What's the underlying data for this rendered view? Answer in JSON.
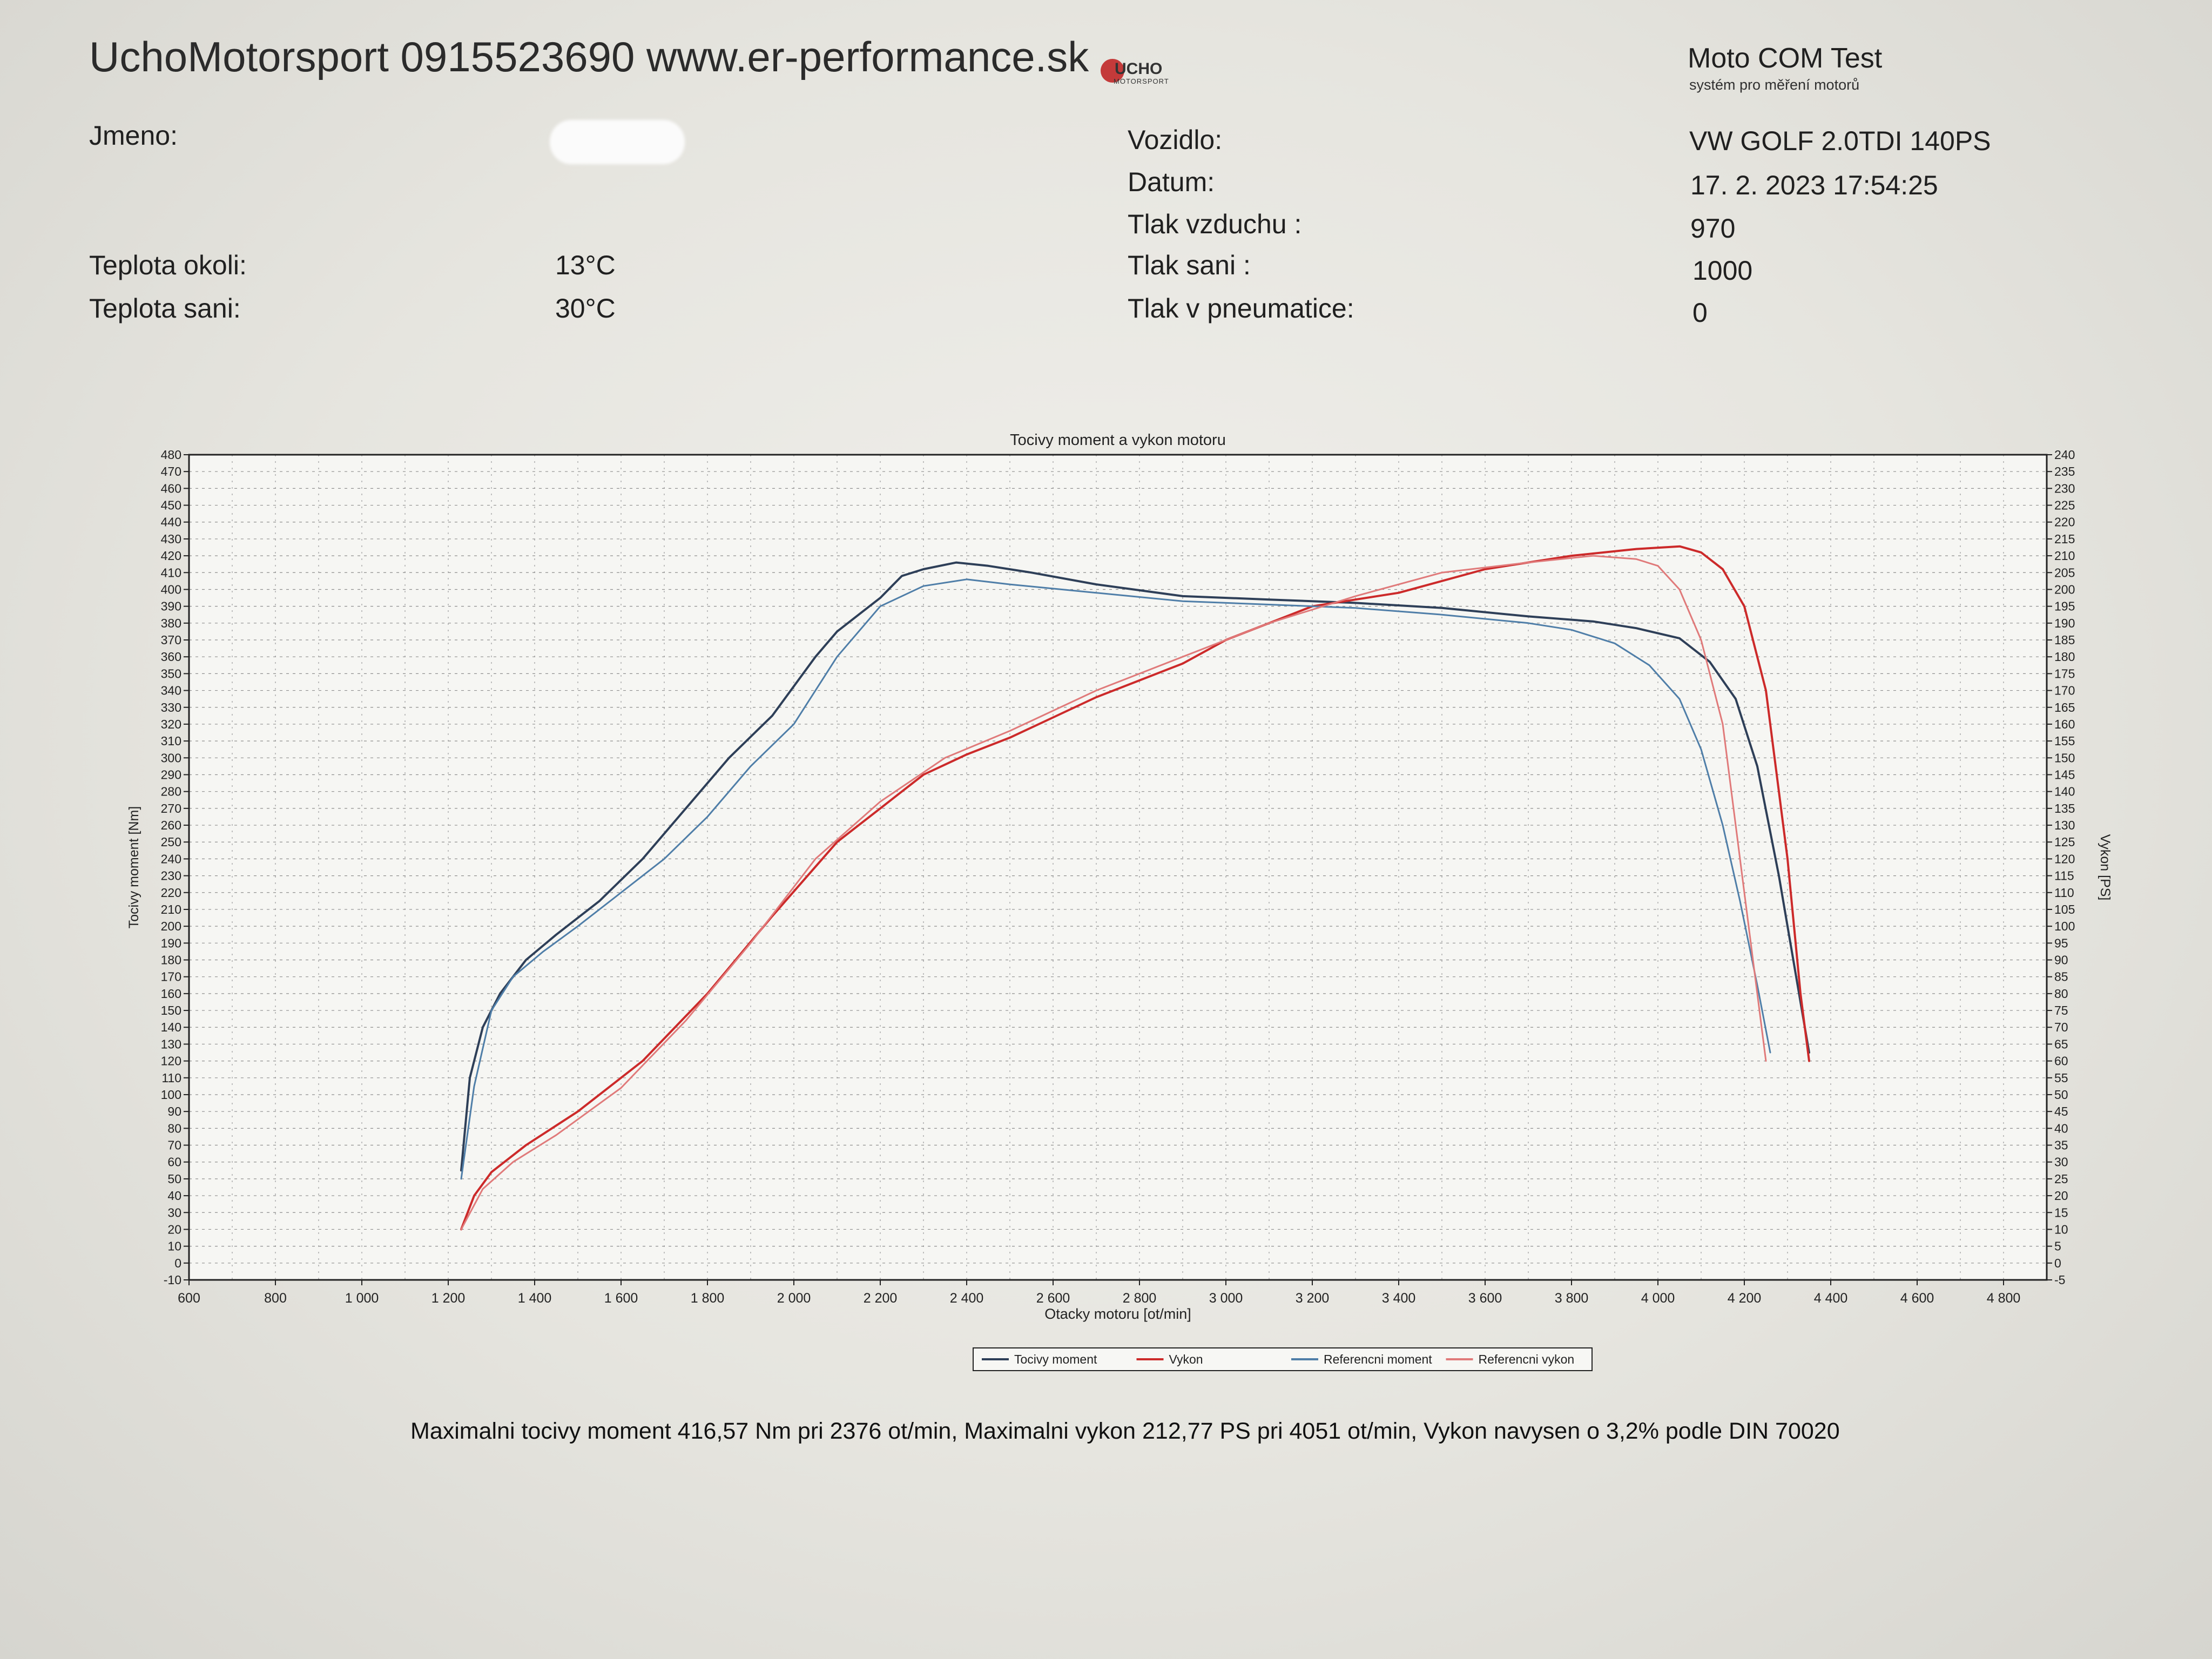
{
  "header": {
    "title": "UchoMotorsport 0915523690 www.er-performance.sk",
    "logo_text": "UCHO",
    "logo_subtext": "MOTORSPORT",
    "brand": "Moto COM Test",
    "brand_subtitle": "systém pro měření motorů"
  },
  "fields_left": [
    {
      "label": "Jmeno:",
      "value": ""
    },
    {
      "label": "Teplota okoli:",
      "value": "13°C"
    },
    {
      "label": "Teplota sani:",
      "value": "30°C"
    }
  ],
  "fields_right": [
    {
      "label": "Vozidlo:",
      "value": "VW GOLF 2.0TDI 140PS"
    },
    {
      "label": "Datum:",
      "value": "17. 2. 2023 17:54:25"
    },
    {
      "label": "Tlak vzduchu :",
      "value": "970"
    },
    {
      "label": "Tlak sani :",
      "value": "1000"
    },
    {
      "label": "Tlak v pneumatice:",
      "value": "0"
    }
  ],
  "footer": "Maximalni tocivy moment 416,57 Nm pri 2376 ot/min,  Maximalni vykon 212,77 PS pri 4051 ot/min,  Vykon navysen o 3,2% podle DIN 70020",
  "colors": {
    "moment": "#2e3f58",
    "vykon": "#cc2a2a",
    "ref_moment": "#4f7ea8",
    "ref_vykon": "#e07a7a"
  },
  "chart_data": {
    "type": "line",
    "title": "Tocivy moment a vykon motoru",
    "xlabel": "Otacky motoru [ot/min]",
    "ylabel": "Tocivy moment [Nm]",
    "y2label": "Vykon [PS]",
    "xlim": [
      600,
      4900
    ],
    "ylim": [
      -10,
      480
    ],
    "y2lim": [
      -5,
      240
    ],
    "x_ticks": [
      600,
      800,
      1000,
      1200,
      1400,
      1600,
      1800,
      2000,
      2200,
      2400,
      2600,
      2800,
      3000,
      3200,
      3400,
      3600,
      3800,
      4000,
      4200,
      4400,
      4600,
      4800
    ],
    "x_tick_labels": [
      "600",
      "800",
      "1 000",
      "1 200",
      "1 400",
      "1 600",
      "1 800",
      "2 000",
      "2 200",
      "2 400",
      "2 600",
      "2 800",
      "3 000",
      "3 200",
      "3 400",
      "3 600",
      "3 800",
      "4 000",
      "4 200",
      "4 400",
      "4 600",
      "4 800"
    ],
    "y_ticks": [
      -10,
      0,
      10,
      20,
      30,
      40,
      50,
      60,
      70,
      80,
      90,
      100,
      110,
      120,
      130,
      140,
      150,
      160,
      170,
      180,
      190,
      200,
      210,
      220,
      230,
      240,
      250,
      260,
      270,
      280,
      290,
      300,
      310,
      320,
      330,
      340,
      350,
      360,
      370,
      380,
      390,
      400,
      410,
      420,
      430,
      440,
      450,
      460,
      470,
      480
    ],
    "y2_ticks": [
      -5,
      0,
      5,
      10,
      15,
      20,
      25,
      30,
      35,
      40,
      45,
      50,
      55,
      60,
      65,
      70,
      75,
      80,
      85,
      90,
      95,
      100,
      105,
      110,
      115,
      120,
      125,
      130,
      135,
      140,
      145,
      150,
      155,
      160,
      165,
      170,
      175,
      180,
      185,
      190,
      195,
      200,
      205,
      210,
      215,
      220,
      225,
      230,
      235,
      240
    ],
    "grid": true,
    "legend": "bottom",
    "series": [
      {
        "name": "Tocivy moment",
        "axis": "left",
        "x": [
          1230,
          1250,
          1280,
          1320,
          1380,
          1450,
          1550,
          1650,
          1750,
          1850,
          1950,
          2050,
          2100,
          2150,
          2200,
          2250,
          2300,
          2376,
          2450,
          2550,
          2700,
          2900,
          3100,
          3300,
          3500,
          3700,
          3850,
          3950,
          4050,
          4120,
          4180,
          4230,
          4280,
          4320,
          4350
        ],
        "y": [
          55,
          110,
          140,
          160,
          180,
          195,
          215,
          240,
          270,
          300,
          325,
          360,
          375,
          385,
          395,
          408,
          412,
          416,
          414,
          410,
          403,
          396,
          394,
          392,
          389,
          384,
          381,
          377,
          371,
          357,
          335,
          295,
          230,
          170,
          125
        ]
      },
      {
        "name": "Vykon",
        "axis": "right",
        "x": [
          1230,
          1260,
          1300,
          1380,
          1500,
          1650,
          1800,
          1950,
          2100,
          2200,
          2300,
          2400,
          2500,
          2600,
          2700,
          2800,
          2900,
          3000,
          3200,
          3400,
          3600,
          3800,
          3950,
          4051,
          4100,
          4150,
          4200,
          4250,
          4300,
          4330,
          4350
        ],
        "y": [
          10,
          20,
          27,
          35,
          45,
          60,
          80,
          103,
          125,
          135,
          145,
          151,
          156,
          162,
          168,
          173,
          178,
          185,
          195,
          199,
          206,
          210,
          212,
          212.77,
          211,
          206,
          195,
          170,
          120,
          80,
          60
        ]
      },
      {
        "name": "Referencni moment",
        "axis": "left",
        "x": [
          1230,
          1260,
          1300,
          1350,
          1420,
          1500,
          1600,
          1700,
          1800,
          1900,
          2000,
          2100,
          2200,
          2300,
          2400,
          2500,
          2700,
          2900,
          3100,
          3300,
          3500,
          3700,
          3800,
          3900,
          3980,
          4050,
          4100,
          4150,
          4190,
          4230,
          4260
        ],
        "y": [
          50,
          105,
          150,
          170,
          185,
          200,
          220,
          240,
          265,
          295,
          320,
          360,
          390,
          402,
          406,
          403,
          398,
          393,
          391,
          389,
          385,
          380,
          376,
          368,
          355,
          335,
          305,
          260,
          215,
          165,
          125
        ]
      },
      {
        "name": "Referencni vykon",
        "axis": "right",
        "x": [
          1230,
          1280,
          1350,
          1450,
          1600,
          1750,
          1900,
          2050,
          2200,
          2350,
          2500,
          2700,
          2900,
          3100,
          3300,
          3500,
          3700,
          3850,
          3950,
          4000,
          4050,
          4100,
          4150,
          4200,
          4230,
          4250
        ],
        "y": [
          10,
          22,
          30,
          38,
          52,
          72,
          95,
          120,
          137,
          150,
          158,
          170,
          180,
          190,
          198,
          205,
          208,
          210,
          209,
          207,
          200,
          185,
          160,
          110,
          80,
          60
        ]
      }
    ]
  }
}
